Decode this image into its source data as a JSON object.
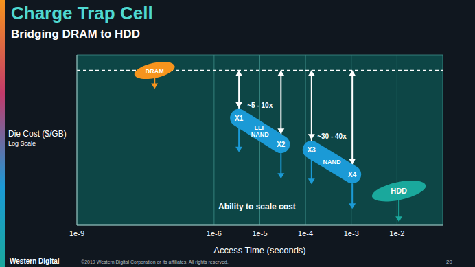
{
  "chart_data": {
    "type": "line",
    "title": "Charge Trap Cell",
    "subtitle": "Bridging DRAM to HDD",
    "x_label": "Access Time (seconds)",
    "y_label": "Die Cost ($/GB)",
    "y_label_note": "Log Scale",
    "log": true,
    "grid": true,
    "tick_labels": "x",
    "xlim": [
      1e-09,
      0.1
    ],
    "xticks": [
      {
        "value": 1e-09,
        "label": "1e-9"
      },
      {
        "value": 1e-06,
        "label": "1e-6"
      },
      {
        "value": 1e-05,
        "label": "1e-5"
      },
      {
        "value": 0.0001,
        "label": "1e-4"
      },
      {
        "value": 0.001,
        "label": "1e-3"
      },
      {
        "value": 0.01,
        "label": "1e-2"
      }
    ],
    "ylim": [
      0.001,
      2
    ],
    "yticks": [
      0.001,
      0.01,
      0.1,
      1
    ],
    "annotations": [
      "Ability to scale cost"
    ],
    "series": [
      {
        "name": "DRAM",
        "color": "#f7941d",
        "marker": "ellipse",
        "x": [
          5e-08
        ],
        "y": [
          1
        ],
        "point_labels": [
          null
        ]
      },
      {
        "name": "LLF NAND",
        "color": "#1b9ad6",
        "marker": "capsule",
        "x": [
          3.5e-06,
          2.9e-05
        ],
        "y": [
          0.12,
          0.037
        ],
        "point_labels": [
          "X1",
          "X2"
        ],
        "annotation": "~5 - 10x"
      },
      {
        "name": "NAND",
        "color": "#1b9ad6",
        "marker": "capsule",
        "x": [
          0.000135,
          0.00105
        ],
        "y": [
          0.029,
          0.0096
        ],
        "point_labels": [
          "X3",
          "X4"
        ],
        "annotation": "~30 - 40x"
      },
      {
        "name": "HDD",
        "color": "#1aa89c",
        "marker": "ellipse",
        "x": [
          0.011
        ],
        "y": [
          0.0046
        ],
        "point_labels": [
          null
        ]
      }
    ]
  },
  "footer": {
    "logo": "Western Digital",
    "copyright": "©2019 Western Digital Corporation or its affiliates. All rights reserved.",
    "page": "20"
  }
}
